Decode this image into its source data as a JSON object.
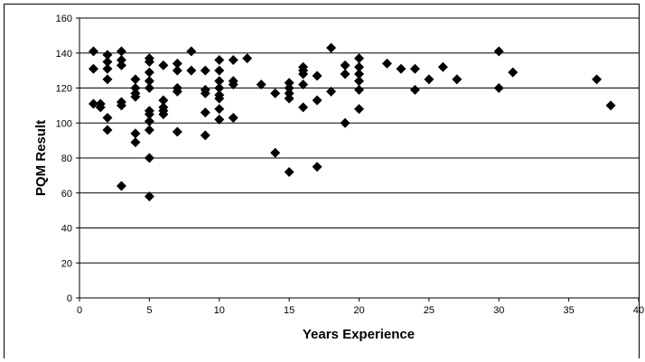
{
  "chart_data": {
    "type": "scatter",
    "title": "",
    "xlabel": "Years Experience",
    "ylabel": "PQM Result",
    "xlim": [
      0,
      40
    ],
    "ylim": [
      0,
      160
    ],
    "xticks": [
      0,
      5,
      10,
      15,
      20,
      25,
      30,
      35,
      40
    ],
    "yticks": [
      0,
      20,
      40,
      60,
      80,
      100,
      120,
      140,
      160
    ],
    "grid": "horizontal",
    "legend": "none",
    "marker": "diamond",
    "marker_color": "#000000",
    "series": [
      {
        "points": [
          [
            1,
            141
          ],
          [
            1,
            131
          ],
          [
            1,
            111
          ],
          [
            1.5,
            111
          ],
          [
            1.5,
            109
          ],
          [
            2,
            139
          ],
          [
            2,
            135
          ],
          [
            2,
            131
          ],
          [
            2,
            125
          ],
          [
            2,
            103
          ],
          [
            2,
            96
          ],
          [
            3,
            141
          ],
          [
            3,
            136
          ],
          [
            3,
            133
          ],
          [
            3,
            112
          ],
          [
            3,
            110
          ],
          [
            3,
            64
          ],
          [
            4,
            125
          ],
          [
            4,
            120
          ],
          [
            4,
            117
          ],
          [
            4,
            115
          ],
          [
            4,
            94
          ],
          [
            4,
            89
          ],
          [
            5,
            137
          ],
          [
            5,
            135
          ],
          [
            5,
            129
          ],
          [
            5,
            124
          ],
          [
            5,
            120
          ],
          [
            5,
            107
          ],
          [
            5,
            105
          ],
          [
            5,
            101
          ],
          [
            5,
            96
          ],
          [
            5,
            80
          ],
          [
            5,
            58
          ],
          [
            6,
            133
          ],
          [
            6,
            113
          ],
          [
            6,
            109
          ],
          [
            6,
            107
          ],
          [
            6,
            105
          ],
          [
            7,
            134
          ],
          [
            7,
            130
          ],
          [
            7,
            120
          ],
          [
            7,
            118
          ],
          [
            7,
            95
          ],
          [
            8,
            141
          ],
          [
            8,
            130
          ],
          [
            9,
            130
          ],
          [
            9,
            119
          ],
          [
            9,
            117
          ],
          [
            9,
            106
          ],
          [
            9,
            93
          ],
          [
            10,
            136
          ],
          [
            10,
            130
          ],
          [
            10,
            124
          ],
          [
            10,
            120
          ],
          [
            10,
            116
          ],
          [
            10,
            114
          ],
          [
            10,
            108
          ],
          [
            10,
            102
          ],
          [
            11,
            136
          ],
          [
            11,
            124
          ],
          [
            11,
            122
          ],
          [
            11,
            103
          ],
          [
            12,
            137
          ],
          [
            13,
            122
          ],
          [
            14,
            117
          ],
          [
            14,
            83
          ],
          [
            15,
            123
          ],
          [
            15,
            120
          ],
          [
            15,
            117
          ],
          [
            15,
            114
          ],
          [
            15,
            72
          ],
          [
            16,
            132
          ],
          [
            16,
            130
          ],
          [
            16,
            128
          ],
          [
            16,
            122
          ],
          [
            16,
            109
          ],
          [
            17,
            127
          ],
          [
            17,
            113
          ],
          [
            17,
            75
          ],
          [
            18,
            143
          ],
          [
            18,
            118
          ],
          [
            19,
            133
          ],
          [
            19,
            128
          ],
          [
            19,
            100
          ],
          [
            20,
            137
          ],
          [
            20,
            132
          ],
          [
            20,
            128
          ],
          [
            20,
            124
          ],
          [
            20,
            119
          ],
          [
            20,
            108
          ],
          [
            22,
            134
          ],
          [
            23,
            131
          ],
          [
            24,
            131
          ],
          [
            24,
            119
          ],
          [
            25,
            125
          ],
          [
            26,
            132
          ],
          [
            27,
            125
          ],
          [
            30,
            141
          ],
          [
            30,
            120
          ],
          [
            31,
            129
          ],
          [
            37,
            125
          ],
          [
            38,
            110
          ]
        ]
      }
    ]
  }
}
